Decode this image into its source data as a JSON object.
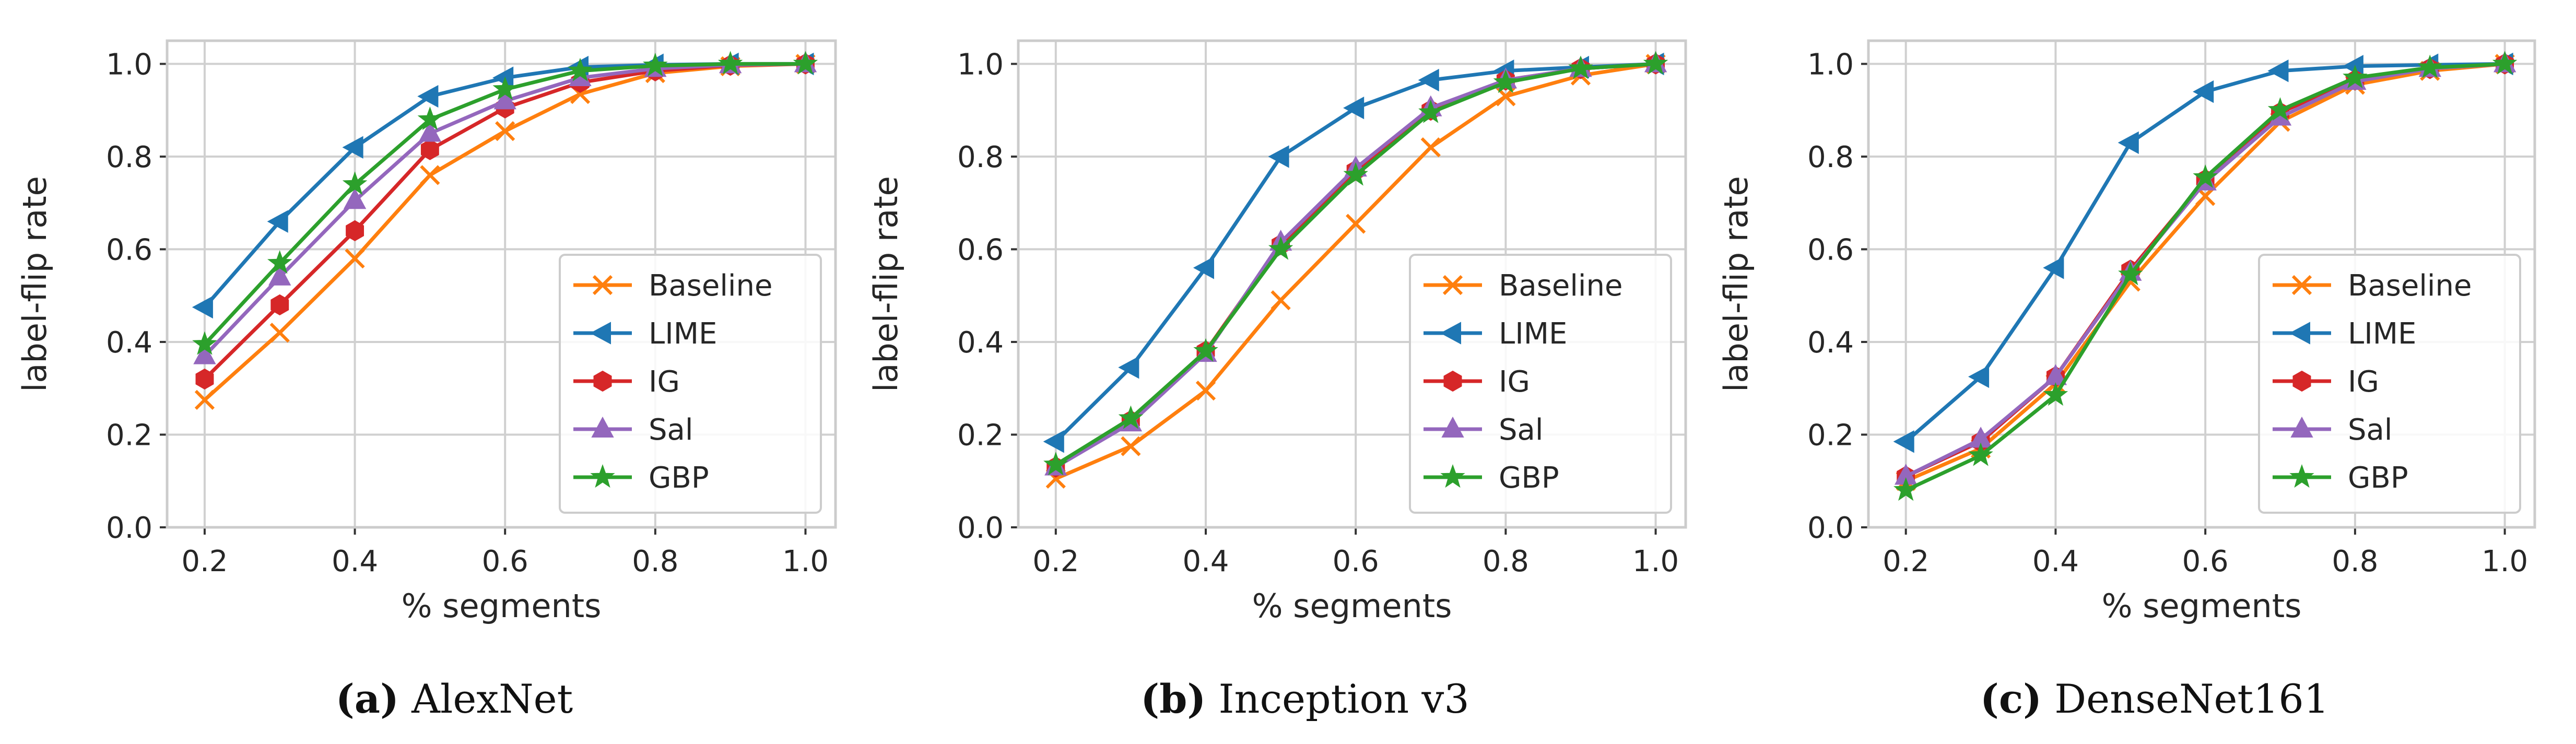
{
  "chart_data": [
    {
      "type": "line",
      "panel_label": "(a)",
      "caption": "AlexNet",
      "xlabel": "% segments",
      "ylabel": "label-flip rate",
      "xlim": [
        0.15,
        1.04
      ],
      "ylim": [
        0.0,
        1.05
      ],
      "xticks": [
        "0.2",
        "0.4",
        "0.6",
        "0.8",
        "1.0"
      ],
      "yticks": [
        "0.0",
        "0.2",
        "0.4",
        "0.6",
        "0.8",
        "1.0"
      ],
      "grid": true,
      "legend_position": "lower-right",
      "x": [
        0.2,
        0.3,
        0.4,
        0.5,
        0.6,
        0.7,
        0.8,
        0.9,
        1.0
      ],
      "series": [
        {
          "name": "Baseline",
          "color": "#ff7f0e",
          "marker": "x",
          "values": [
            0.275,
            0.42,
            0.58,
            0.76,
            0.855,
            0.935,
            0.98,
            0.995,
            1.0
          ]
        },
        {
          "name": "LIME",
          "color": "#1f77b4",
          "marker": "triangle-left",
          "values": [
            0.475,
            0.66,
            0.82,
            0.93,
            0.97,
            0.993,
            0.998,
            1.0,
            1.0
          ]
        },
        {
          "name": "IG",
          "color": "#d62728",
          "marker": "hexagon",
          "values": [
            0.32,
            0.48,
            0.64,
            0.815,
            0.905,
            0.96,
            0.985,
            0.997,
            1.0
          ]
        },
        {
          "name": "Sal",
          "color": "#9467bd",
          "marker": "triangle-up",
          "values": [
            0.37,
            0.54,
            0.705,
            0.85,
            0.92,
            0.97,
            0.99,
            0.998,
            1.0
          ]
        },
        {
          "name": "GBP",
          "color": "#2ca02c",
          "marker": "star",
          "values": [
            0.395,
            0.57,
            0.74,
            0.88,
            0.945,
            0.985,
            0.996,
            1.0,
            1.0
          ]
        }
      ]
    },
    {
      "type": "line",
      "panel_label": "(b)",
      "caption": "Inception v3",
      "xlabel": "% segments",
      "ylabel": "label-flip rate",
      "xlim": [
        0.15,
        1.04
      ],
      "ylim": [
        0.0,
        1.05
      ],
      "xticks": [
        "0.2",
        "0.4",
        "0.6",
        "0.8",
        "1.0"
      ],
      "yticks": [
        "0.0",
        "0.2",
        "0.4",
        "0.6",
        "0.8",
        "1.0"
      ],
      "grid": true,
      "legend_position": "lower-right",
      "x": [
        0.2,
        0.3,
        0.4,
        0.5,
        0.6,
        0.7,
        0.8,
        0.9,
        1.0
      ],
      "series": [
        {
          "name": "Baseline",
          "color": "#ff7f0e",
          "marker": "x",
          "values": [
            0.105,
            0.175,
            0.295,
            0.49,
            0.655,
            0.82,
            0.93,
            0.975,
            1.0
          ]
        },
        {
          "name": "LIME",
          "color": "#1f77b4",
          "marker": "triangle-left",
          "values": [
            0.185,
            0.345,
            0.56,
            0.8,
            0.905,
            0.965,
            0.985,
            0.993,
            1.0
          ]
        },
        {
          "name": "IG",
          "color": "#d62728",
          "marker": "hexagon",
          "values": [
            0.13,
            0.23,
            0.38,
            0.61,
            0.77,
            0.9,
            0.965,
            0.99,
            1.0
          ]
        },
        {
          "name": "Sal",
          "color": "#9467bd",
          "marker": "triangle-up",
          "values": [
            0.13,
            0.225,
            0.375,
            0.615,
            0.775,
            0.905,
            0.965,
            0.99,
            1.0
          ]
        },
        {
          "name": "GBP",
          "color": "#2ca02c",
          "marker": "star",
          "values": [
            0.135,
            0.235,
            0.38,
            0.6,
            0.76,
            0.895,
            0.96,
            0.99,
            1.0
          ]
        }
      ]
    },
    {
      "type": "line",
      "panel_label": "(c)",
      "caption": "DenseNet161",
      "xlabel": "% segments",
      "ylabel": "label-flip rate",
      "xlim": [
        0.15,
        1.04
      ],
      "ylim": [
        0.0,
        1.05
      ],
      "xticks": [
        "0.2",
        "0.4",
        "0.6",
        "0.8",
        "1.0"
      ],
      "yticks": [
        "0.0",
        "0.2",
        "0.4",
        "0.6",
        "0.8",
        "1.0"
      ],
      "grid": true,
      "legend_position": "lower-right",
      "x": [
        0.2,
        0.3,
        0.4,
        0.5,
        0.6,
        0.7,
        0.8,
        0.9,
        1.0
      ],
      "series": [
        {
          "name": "Baseline",
          "color": "#ff7f0e",
          "marker": "x",
          "values": [
            0.1,
            0.17,
            0.31,
            0.53,
            0.715,
            0.875,
            0.955,
            0.985,
            1.0
          ]
        },
        {
          "name": "LIME",
          "color": "#1f77b4",
          "marker": "triangle-left",
          "values": [
            0.185,
            0.325,
            0.56,
            0.83,
            0.94,
            0.985,
            0.995,
            0.998,
            1.0
          ]
        },
        {
          "name": "IG",
          "color": "#d62728",
          "marker": "hexagon",
          "values": [
            0.11,
            0.185,
            0.325,
            0.555,
            0.75,
            0.895,
            0.965,
            0.99,
            1.0
          ]
        },
        {
          "name": "Sal",
          "color": "#9467bd",
          "marker": "triangle-up",
          "values": [
            0.11,
            0.19,
            0.325,
            0.55,
            0.745,
            0.885,
            0.962,
            0.99,
            1.0
          ]
        },
        {
          "name": "GBP",
          "color": "#2ca02c",
          "marker": "star",
          "values": [
            0.08,
            0.155,
            0.285,
            0.545,
            0.755,
            0.9,
            0.97,
            0.992,
            1.0
          ]
        }
      ]
    }
  ]
}
